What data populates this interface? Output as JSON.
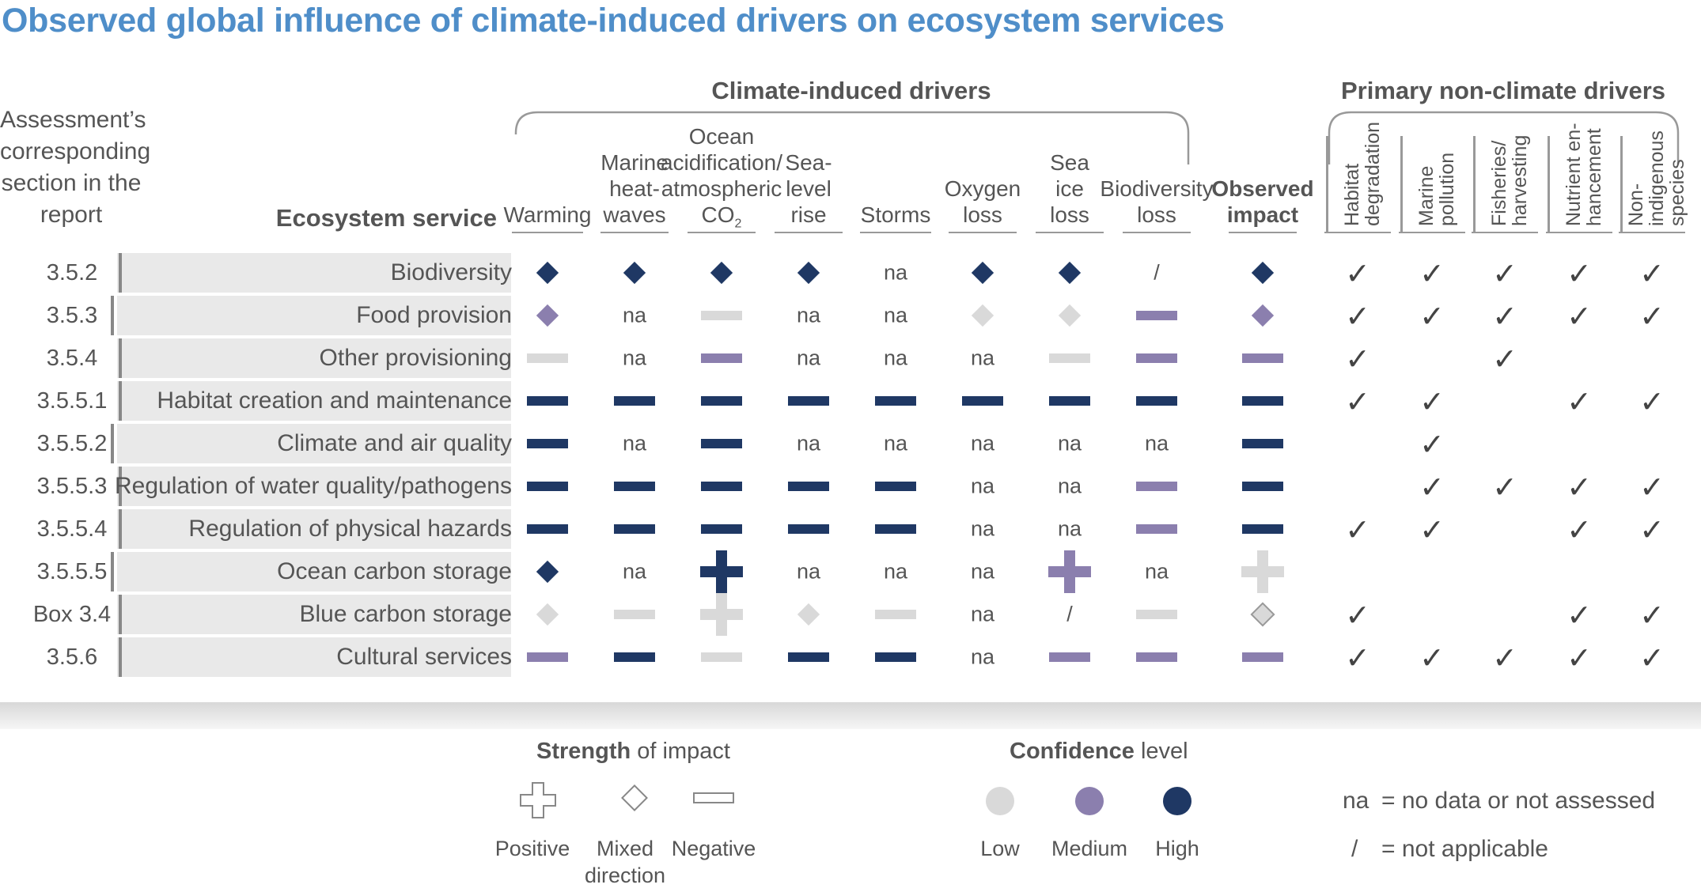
{
  "title": "Observed global influence of climate-induced drivers on ecosystem services",
  "group_climate": "Climate-induced drivers",
  "group_nonclimate": "Primary non-climate drivers",
  "assessment_header": "Assessment’s corresponding section in the report",
  "service_header": "Ecosystem service",
  "climate_columns": [
    {
      "key": "warming",
      "lines": [
        "Warming"
      ]
    },
    {
      "key": "mhw",
      "lines": [
        "Marine",
        "heat-",
        "waves"
      ]
    },
    {
      "key": "oa",
      "lines": [
        "Ocean",
        "acidification/",
        "atmospheric"
      ],
      "last_line": "CO",
      "sub": "2"
    },
    {
      "key": "slr",
      "lines": [
        "Sea-",
        "level",
        "rise"
      ]
    },
    {
      "key": "storms",
      "lines": [
        "Storms"
      ]
    },
    {
      "key": "oxy",
      "lines": [
        "Oxygen",
        "loss"
      ]
    },
    {
      "key": "ice",
      "lines": [
        "Sea",
        "ice",
        "loss"
      ]
    },
    {
      "key": "bio",
      "lines": [
        "Biodiversity",
        "loss"
      ]
    },
    {
      "key": "obs",
      "lines": [
        "Observed",
        "impact"
      ],
      "bold": true
    }
  ],
  "nonclimate_columns": [
    {
      "lines": [
        "Habitat",
        "degradation"
      ]
    },
    {
      "lines": [
        "Marine",
        "pollution"
      ]
    },
    {
      "lines": [
        "Fisheries/",
        "harvesting"
      ]
    },
    {
      "lines": [
        "Nutrient en-",
        "hancement"
      ]
    },
    {
      "lines": [
        "Non-",
        "indigenous",
        "species"
      ]
    }
  ],
  "colors": {
    "High": "#1f3864",
    "Medium": "#8b7fae",
    "Low": "#d9d9d9",
    "title": "#4f8ec9"
  },
  "rows": [
    {
      "section": "3.5.2",
      "service": "Biodiversity",
      "cells": [
        [
          "mixed",
          "High"
        ],
        [
          "mixed",
          "High"
        ],
        [
          "mixed",
          "High"
        ],
        [
          "mixed",
          "High"
        ],
        [
          "na"
        ],
        [
          "mixed",
          "High"
        ],
        [
          "mixed",
          "High"
        ],
        [
          "slash"
        ],
        [
          "mixed",
          "High"
        ]
      ],
      "checks": [
        true,
        true,
        true,
        true,
        true
      ]
    },
    {
      "section": "3.5.3",
      "service": "Food provision",
      "cells": [
        [
          "mixed",
          "Medium"
        ],
        [
          "na"
        ],
        [
          "neg",
          "Low"
        ],
        [
          "na"
        ],
        [
          "na"
        ],
        [
          "mixed",
          "Low"
        ],
        [
          "mixed",
          "Low"
        ],
        [
          "neg",
          "Medium"
        ],
        [
          "mixed",
          "Medium"
        ]
      ],
      "checks": [
        true,
        true,
        true,
        true,
        true
      ]
    },
    {
      "section": "3.5.4",
      "service": "Other provisioning",
      "cells": [
        [
          "neg",
          "Low"
        ],
        [
          "na"
        ],
        [
          "neg",
          "Medium"
        ],
        [
          "na"
        ],
        [
          "na"
        ],
        [
          "na"
        ],
        [
          "neg",
          "Low"
        ],
        [
          "neg",
          "Medium"
        ],
        [
          "neg",
          "Medium"
        ]
      ],
      "checks": [
        true,
        false,
        true,
        false,
        false
      ]
    },
    {
      "section": "3.5.5.1",
      "service": "Habitat creation and maintenance",
      "cells": [
        [
          "neg",
          "High"
        ],
        [
          "neg",
          "High"
        ],
        [
          "neg",
          "High"
        ],
        [
          "neg",
          "High"
        ],
        [
          "neg",
          "High"
        ],
        [
          "neg",
          "High"
        ],
        [
          "neg",
          "High"
        ],
        [
          "neg",
          "High"
        ],
        [
          "neg",
          "High"
        ]
      ],
      "checks": [
        true,
        true,
        false,
        true,
        true
      ]
    },
    {
      "section": "3.5.5.2",
      "service": "Climate and air quality",
      "cells": [
        [
          "neg",
          "High"
        ],
        [
          "na"
        ],
        [
          "neg",
          "High"
        ],
        [
          "na"
        ],
        [
          "na"
        ],
        [
          "na"
        ],
        [
          "na"
        ],
        [
          "na"
        ],
        [
          "neg",
          "High"
        ]
      ],
      "checks": [
        false,
        true,
        false,
        false,
        false
      ]
    },
    {
      "section": "3.5.5.3",
      "service": "Regulation of water quality/pathogens",
      "cells": [
        [
          "neg",
          "High"
        ],
        [
          "neg",
          "High"
        ],
        [
          "neg",
          "High"
        ],
        [
          "neg",
          "High"
        ],
        [
          "neg",
          "High"
        ],
        [
          "na"
        ],
        [
          "na"
        ],
        [
          "neg",
          "Medium"
        ],
        [
          "neg",
          "High"
        ]
      ],
      "checks": [
        false,
        true,
        true,
        true,
        true
      ]
    },
    {
      "section": "3.5.5.4",
      "service": "Regulation of physical hazards",
      "cells": [
        [
          "neg",
          "High"
        ],
        [
          "neg",
          "High"
        ],
        [
          "neg",
          "High"
        ],
        [
          "neg",
          "High"
        ],
        [
          "neg",
          "High"
        ],
        [
          "na"
        ],
        [
          "na"
        ],
        [
          "neg",
          "Medium"
        ],
        [
          "neg",
          "High"
        ]
      ],
      "checks": [
        true,
        true,
        false,
        true,
        true
      ]
    },
    {
      "section": "3.5.5.5",
      "service": "Ocean carbon storage",
      "cells": [
        [
          "mixed",
          "High"
        ],
        [
          "na"
        ],
        [
          "pos",
          "High"
        ],
        [
          "na"
        ],
        [
          "na"
        ],
        [
          "na"
        ],
        [
          "pos",
          "Medium"
        ],
        [
          "na"
        ],
        [
          "pos",
          "Low"
        ]
      ],
      "checks": [
        false,
        false,
        false,
        false,
        false
      ]
    },
    {
      "section": "Box 3.4",
      "service": "Blue carbon storage",
      "cells": [
        [
          "mixed",
          "Low"
        ],
        [
          "neg",
          "Low"
        ],
        [
          "pos",
          "Low"
        ],
        [
          "mixed",
          "Low"
        ],
        [
          "neg",
          "Low"
        ],
        [
          "na"
        ],
        [
          "slash"
        ],
        [
          "neg",
          "Low"
        ],
        [
          "mixed",
          "LowOutline"
        ]
      ],
      "checks": [
        true,
        false,
        false,
        true,
        true
      ]
    },
    {
      "section": "3.5.6",
      "service": "Cultural services",
      "cells": [
        [
          "neg",
          "Medium"
        ],
        [
          "neg",
          "High"
        ],
        [
          "neg",
          "Low"
        ],
        [
          "neg",
          "High"
        ],
        [
          "neg",
          "High"
        ],
        [
          "na"
        ],
        [
          "neg",
          "Medium"
        ],
        [
          "neg",
          "Medium"
        ],
        [
          "neg",
          "Medium"
        ]
      ],
      "checks": [
        true,
        true,
        true,
        true,
        true
      ]
    }
  ],
  "symbols": {
    "na": "na",
    "slash": "/",
    "check": "✓"
  },
  "legend": {
    "strength_bold": "Strength",
    "strength_rest": " of impact",
    "positive": "Positive",
    "mixed_1": "Mixed",
    "mixed_2": "direction",
    "negative": "Negative",
    "confidence_bold": "Confidence",
    "confidence_rest": " level",
    "low": "Low",
    "medium": "Medium",
    "high": "High",
    "na_sym": "na",
    "na_text": "= no data or not assessed",
    "slash_sym": "/",
    "slash_text": "= not applicable"
  }
}
